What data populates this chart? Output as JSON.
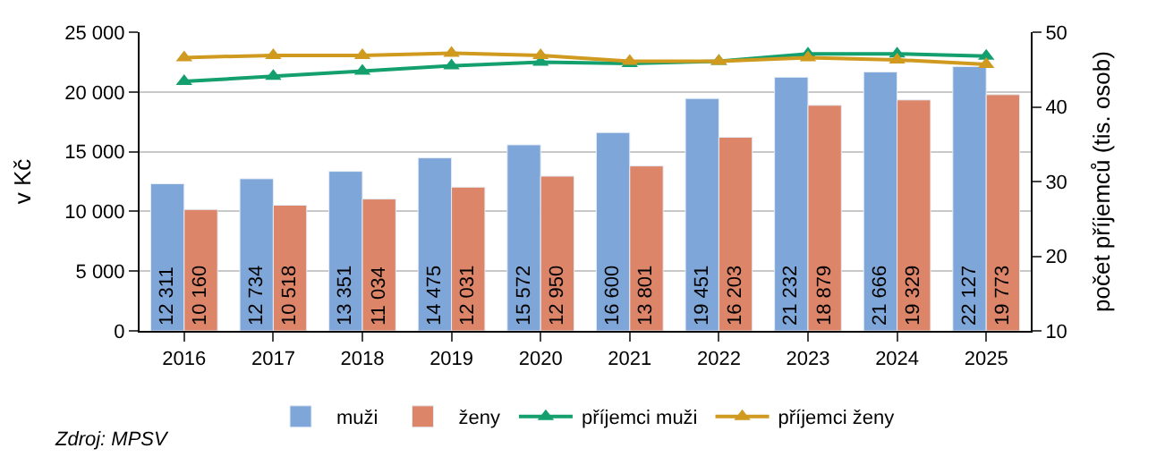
{
  "chart_data": {
    "type": "bar",
    "categories": [
      "2016",
      "2017",
      "2018",
      "2019",
      "2020",
      "2021",
      "2022",
      "2023",
      "2024",
      "2025"
    ],
    "series": [
      {
        "name": "muži",
        "color": "#7ea6d8",
        "values": [
          12311,
          12734,
          13351,
          14475,
          15572,
          16600,
          19451,
          21232,
          21666,
          22127
        ],
        "value_labels": [
          "12 311",
          "12 734",
          "13 351",
          "14 475",
          "15 572",
          "16 600",
          "19 451",
          "21 232",
          "21 666",
          "22 127"
        ]
      },
      {
        "name": "ženy",
        "color": "#dc8568",
        "values": [
          10160,
          10518,
          11034,
          12031,
          12950,
          13801,
          16203,
          18879,
          19329,
          19773
        ],
        "value_labels": [
          "10 160",
          "10 518",
          "11 034",
          "12 031",
          "12 950",
          "13 801",
          "16 203",
          "18 879",
          "19 329",
          "19 773"
        ]
      },
      {
        "name": "příjemci muži",
        "type": "line",
        "axis": "y2",
        "marker": "triangle",
        "color": "#13a06e",
        "values": [
          43.4,
          44.1,
          44.8,
          45.5,
          46.0,
          45.8,
          46.1,
          47.1,
          47.1,
          46.8
        ]
      },
      {
        "name": "příjemci ženy",
        "type": "line",
        "axis": "y2",
        "marker": "triangle",
        "color": "#cf9a1e",
        "values": [
          46.6,
          46.9,
          46.9,
          47.2,
          46.9,
          46.1,
          46.1,
          46.6,
          46.3,
          45.7
        ]
      }
    ],
    "ylabel": "v Kč",
    "y2label": "počet příjemců (tis. osob)",
    "ylim": [
      0,
      25000
    ],
    "yticks": [
      {
        "value": 0,
        "label": "0"
      },
      {
        "value": 5000,
        "label": "5 000"
      },
      {
        "value": 10000,
        "label": "10 000"
      },
      {
        "value": 15000,
        "label": "15 000"
      },
      {
        "value": 20000,
        "label": "20 000"
      },
      {
        "value": 25000,
        "label": "25 000"
      }
    ],
    "y2lim": [
      10,
      50
    ],
    "y2ticks": [
      10,
      20,
      30,
      40,
      50
    ],
    "grid": "y",
    "legend": "bottom",
    "annotations": [
      "Zdroj: MPSV"
    ]
  }
}
